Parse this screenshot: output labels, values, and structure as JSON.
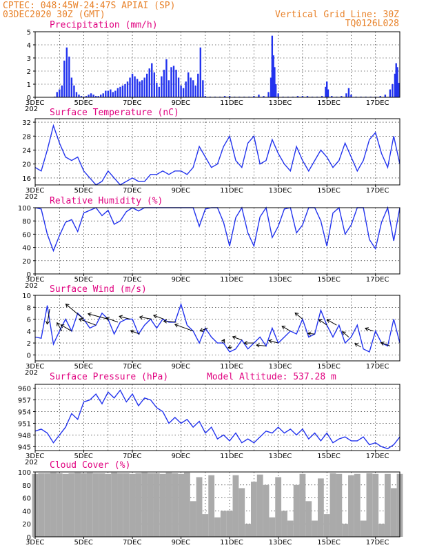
{
  "header": {
    "line1_left": "CPTEC:   048:45W-24:47S  APIAI (SP)",
    "line2_left": "03DEC2020 30Z (GMT)",
    "line1_right": "Vertical Grid Line: 30Z",
    "line2_right": "TQ0126L028",
    "model_altitude": "Model Altitude: 537.28 m"
  },
  "colors": {
    "series": "#2233ee",
    "cloud": "#aaaaaa",
    "header": "#e8822a",
    "title": "#e0007f"
  },
  "x_axis": {
    "labels": [
      "3DEC",
      "5DEC",
      "7DEC",
      "9DEC",
      "11DEC",
      "13DEC",
      "15DEC",
      "17DEC"
    ],
    "stub": "202"
  },
  "chart_data": [
    {
      "type": "bar",
      "title": "Precipitation (mm/h)",
      "ylim": [
        0,
        5
      ],
      "yticks": [
        0,
        1,
        2,
        3,
        4,
        5
      ],
      "x_unit": "day",
      "x": [
        3.8,
        3.9,
        4.0,
        4.1,
        4.2,
        4.3,
        4.4,
        4.5,
        4.6,
        4.7,
        4.8,
        4.9,
        5.0,
        5.1,
        5.2,
        5.3,
        5.4,
        5.5,
        5.6,
        5.7,
        5.8,
        5.9,
        6.0,
        6.1,
        6.2,
        6.3,
        6.4,
        6.5,
        6.6,
        6.7,
        6.8,
        6.9,
        7.0,
        7.1,
        7.2,
        7.3,
        7.4,
        7.5,
        7.6,
        7.7,
        7.8,
        7.9,
        8.0,
        8.1,
        8.2,
        8.3,
        8.4,
        8.5,
        8.6,
        8.7,
        8.8,
        8.9,
        9.0,
        9.1,
        9.2,
        9.3,
        9.4,
        9.5,
        9.6,
        9.7,
        9.8,
        9.9,
        10.0,
        10.2,
        10.4,
        10.6,
        10.8,
        11.0,
        11.2,
        11.4,
        11.6,
        11.8,
        12.0,
        12.2,
        12.4,
        12.6,
        12.7,
        12.75,
        12.8,
        12.85,
        12.9,
        13.0,
        13.2,
        13.4,
        13.6,
        13.8,
        14.0,
        14.2,
        14.4,
        14.6,
        14.8,
        14.95,
        15.0,
        15.05,
        15.2,
        15.4,
        15.6,
        15.8,
        15.9,
        16.0,
        16.2,
        16.4,
        16.6,
        16.8,
        17.0,
        17.2,
        17.4,
        17.6,
        17.7,
        17.8,
        17.85,
        17.9,
        17.95
      ],
      "values": [
        0.05,
        0.4,
        0.6,
        0.9,
        2.8,
        3.8,
        3.1,
        1.5,
        0.9,
        0.4,
        0.2,
        0.1,
        0.05,
        0.1,
        0.2,
        0.3,
        0.2,
        0.1,
        0.1,
        0.2,
        0.3,
        0.5,
        0.5,
        0.6,
        0.4,
        0.5,
        0.7,
        0.8,
        0.9,
        1.0,
        1.2,
        1.5,
        1.8,
        1.6,
        1.4,
        1.2,
        1.3,
        1.5,
        1.8,
        2.2,
        2.6,
        1.9,
        1.1,
        0.8,
        1.6,
        2.1,
        2.9,
        1.3,
        2.3,
        2.4,
        2.1,
        1.5,
        0.9,
        0.7,
        1.2,
        1.9,
        1.5,
        1.3,
        0.9,
        1.8,
        3.8,
        1.3,
        0.1,
        0.05,
        0.05,
        0.05,
        0.1,
        0.1,
        0.05,
        0.05,
        0.05,
        0.05,
        0.1,
        0.2,
        0.1,
        0.4,
        1.5,
        4.7,
        3.2,
        2.3,
        1.0,
        0.3,
        0.05,
        0.05,
        0.05,
        0.1,
        0.1,
        0.1,
        0.05,
        0.05,
        0.1,
        0.8,
        1.2,
        0.6,
        0.1,
        0.05,
        0.1,
        0.3,
        0.7,
        0.2,
        0.05,
        0.05,
        0.05,
        0.05,
        0.05,
        0.1,
        0.2,
        0.6,
        1.0,
        1.8,
        2.6,
        2.3,
        1.1
      ]
    },
    {
      "type": "line",
      "title": "Surface Temperature (nC)",
      "ylim": [
        14,
        33
      ],
      "yticks": [
        16,
        20,
        24,
        28,
        32
      ],
      "x_unit": "day",
      "x": [
        3.0,
        3.25,
        3.5,
        3.75,
        4.0,
        4.25,
        4.5,
        4.75,
        5.0,
        5.25,
        5.5,
        5.75,
        6.0,
        6.25,
        6.5,
        6.75,
        7.0,
        7.25,
        7.5,
        7.75,
        8.0,
        8.25,
        8.5,
        8.75,
        9.0,
        9.25,
        9.5,
        9.75,
        10.0,
        10.25,
        10.5,
        10.75,
        11.0,
        11.25,
        11.5,
        11.75,
        12.0,
        12.25,
        12.5,
        12.75,
        13.0,
        13.25,
        13.5,
        13.75,
        14.0,
        14.25,
        14.5,
        14.75,
        15.0,
        15.25,
        15.5,
        15.75,
        16.0,
        16.25,
        16.5,
        16.75,
        17.0,
        17.25,
        17.5,
        17.75,
        18.0
      ],
      "values": [
        19,
        18,
        24,
        31,
        26,
        22,
        21,
        22,
        18,
        16,
        14,
        15,
        18,
        16,
        14,
        15,
        16,
        15,
        15,
        17,
        17,
        18,
        17,
        18,
        18,
        17,
        19,
        25,
        22,
        19,
        20,
        25,
        28,
        21,
        19,
        26,
        28,
        20,
        21,
        27,
        23,
        20,
        18,
        25,
        21,
        18,
        21,
        24,
        22,
        19,
        21,
        26,
        22,
        18,
        21,
        27,
        29,
        23,
        19,
        28,
        20
      ]
    },
    {
      "type": "line",
      "title": "Relative Humidity (%)",
      "ylim": [
        0,
        100
      ],
      "yticks": [
        0,
        20,
        40,
        60,
        80,
        100
      ],
      "x_unit": "day",
      "x": [
        3.0,
        3.25,
        3.5,
        3.75,
        4.0,
        4.25,
        4.5,
        4.75,
        5.0,
        5.25,
        5.5,
        5.75,
        6.0,
        6.25,
        6.5,
        6.75,
        7.0,
        7.25,
        7.5,
        7.75,
        8.0,
        8.25,
        8.5,
        8.75,
        9.0,
        9.25,
        9.5,
        9.75,
        10.0,
        10.25,
        10.5,
        10.75,
        11.0,
        11.25,
        11.5,
        11.75,
        12.0,
        12.25,
        12.5,
        12.75,
        13.0,
        13.25,
        13.5,
        13.75,
        14.0,
        14.25,
        14.5,
        14.75,
        15.0,
        15.25,
        15.5,
        15.75,
        16.0,
        16.25,
        16.5,
        16.75,
        17.0,
        17.25,
        17.5,
        17.75,
        18.0
      ],
      "values": [
        100,
        98,
        60,
        35,
        58,
        78,
        82,
        64,
        92,
        96,
        100,
        88,
        96,
        75,
        80,
        94,
        100,
        95,
        100,
        100,
        100,
        100,
        100,
        100,
        100,
        100,
        100,
        72,
        98,
        100,
        100,
        78,
        42,
        85,
        100,
        62,
        42,
        86,
        100,
        55,
        72,
        98,
        100,
        62,
        74,
        100,
        100,
        80,
        42,
        92,
        100,
        60,
        74,
        100,
        100,
        52,
        38,
        78,
        100,
        50,
        100
      ]
    },
    {
      "type": "line",
      "title": "Surface Wind (m/s)",
      "ylim": [
        -1,
        10
      ],
      "yticks": [
        0,
        2,
        4,
        6,
        8,
        10
      ],
      "x_unit": "day",
      "x": [
        3.0,
        3.25,
        3.5,
        3.75,
        4.0,
        4.25,
        4.5,
        4.75,
        5.0,
        5.25,
        5.5,
        5.75,
        6.0,
        6.25,
        6.5,
        6.75,
        7.0,
        7.25,
        7.5,
        7.75,
        8.0,
        8.25,
        8.5,
        8.75,
        9.0,
        9.25,
        9.5,
        9.75,
        10.0,
        10.25,
        10.5,
        10.75,
        11.0,
        11.25,
        11.5,
        11.75,
        12.0,
        12.25,
        12.5,
        12.75,
        13.0,
        13.25,
        13.5,
        13.75,
        14.0,
        14.25,
        14.5,
        14.75,
        15.0,
        15.25,
        15.5,
        15.75,
        16.0,
        16.25,
        16.5,
        16.75,
        17.0,
        17.25,
        17.5,
        17.75,
        18.0
      ],
      "values": [
        3,
        2.8,
        8.3,
        1.8,
        4,
        6,
        4,
        7,
        6,
        4.5,
        5,
        7,
        6,
        3.5,
        5.5,
        6,
        6,
        3.5,
        5,
        6,
        4.5,
        6,
        5.5,
        5.5,
        8.5,
        5,
        4,
        2,
        4.5,
        3,
        2,
        2,
        0.5,
        1,
        2.5,
        1,
        2,
        3,
        1.5,
        4.5,
        2,
        3,
        4,
        3.5,
        6,
        3,
        3.5,
        7.5,
        5,
        3,
        5,
        2,
        3,
        5,
        1,
        0.5,
        4,
        2,
        1.5,
        6,
        2
      ],
      "arrows_x": [
        3.6,
        4.1,
        4.5,
        5.0,
        5.5,
        6.0,
        6.4,
        6.9,
        7.3,
        7.8,
        8.3,
        8.8,
        9.5,
        10.1,
        10.7,
        11.1,
        11.5,
        12.0,
        12.5,
        13.0,
        13.5,
        14.0,
        14.5,
        15.0,
        15.4,
        15.9,
        16.4,
        16.9,
        17.6
      ],
      "arrows_dir_deg": [
        260,
        120,
        150,
        140,
        160,
        165,
        160,
        165,
        160,
        170,
        160,
        175,
        160,
        200,
        60,
        190,
        160,
        180,
        175,
        165,
        150,
        140,
        175,
        145,
        150,
        140,
        150,
        160,
        160
      ],
      "arrows_len": [
        22,
        14,
        18,
        34,
        26,
        30,
        18,
        16,
        14,
        18,
        16,
        18,
        28,
        12,
        6,
        6,
        14,
        14,
        14,
        14,
        14,
        14,
        10,
        14,
        16,
        12,
        10,
        12,
        14
      ]
    },
    {
      "type": "line",
      "title": "Surface Pressure (hPa)",
      "ylim": [
        944,
        961
      ],
      "yticks": [
        945,
        948,
        951,
        954,
        957,
        960
      ],
      "x_unit": "day",
      "x": [
        3.0,
        3.25,
        3.5,
        3.75,
        4.0,
        4.25,
        4.5,
        4.75,
        5.0,
        5.25,
        5.5,
        5.75,
        6.0,
        6.25,
        6.5,
        6.75,
        7.0,
        7.25,
        7.5,
        7.75,
        8.0,
        8.25,
        8.5,
        8.75,
        9.0,
        9.25,
        9.5,
        9.75,
        10.0,
        10.25,
        10.5,
        10.75,
        11.0,
        11.25,
        11.5,
        11.75,
        12.0,
        12.25,
        12.5,
        12.75,
        13.0,
        13.25,
        13.5,
        13.75,
        14.0,
        14.25,
        14.5,
        14.75,
        15.0,
        15.25,
        15.5,
        15.75,
        16.0,
        16.25,
        16.5,
        16.75,
        17.0,
        17.25,
        17.5,
        17.75,
        18.0
      ],
      "values": [
        949,
        949.5,
        948.5,
        946,
        948,
        950,
        953.5,
        952,
        956.5,
        957,
        958.5,
        956,
        959,
        957.5,
        959.5,
        956.5,
        958.5,
        955.5,
        957.5,
        957,
        955,
        954,
        951,
        952.5,
        951,
        952,
        950,
        951.5,
        948.5,
        950,
        947,
        948,
        946.5,
        948.5,
        946,
        947,
        946,
        947.5,
        949,
        948.5,
        950,
        948.5,
        949.5,
        948,
        949.5,
        947,
        948.5,
        946.5,
        948.5,
        946,
        947,
        947.5,
        946.5,
        946.5,
        947.5,
        945.5,
        946,
        945,
        944.5,
        945.5,
        947.5
      ]
    },
    {
      "type": "bar",
      "title": "Cloud Cover (%)",
      "ylim": [
        0,
        100
      ],
      "yticks": [
        0,
        20,
        40,
        60,
        80,
        100
      ],
      "x_unit": "day",
      "x": [
        3.0,
        3.25,
        3.5,
        3.75,
        4.0,
        4.25,
        4.5,
        4.75,
        5.0,
        5.25,
        5.5,
        5.75,
        6.0,
        6.25,
        6.5,
        6.75,
        7.0,
        7.25,
        7.5,
        7.75,
        8.0,
        8.25,
        8.5,
        8.75,
        9.0,
        9.25,
        9.5,
        9.75,
        10.0,
        10.25,
        10.5,
        10.75,
        11.0,
        11.25,
        11.5,
        11.75,
        12.0,
        12.25,
        12.5,
        12.75,
        13.0,
        13.25,
        13.5,
        13.75,
        14.0,
        14.25,
        14.5,
        14.75,
        15.0,
        15.25,
        15.5,
        15.75,
        16.0,
        16.25,
        16.5,
        16.75,
        17.0,
        17.25,
        17.5,
        17.75,
        18.0
      ],
      "values": [
        97,
        98,
        98,
        99,
        98,
        97,
        98,
        99,
        98,
        99,
        98,
        98,
        97,
        99,
        98,
        98,
        97,
        98,
        99,
        98,
        98,
        97,
        99,
        98,
        97,
        99,
        55,
        92,
        35,
        95,
        30,
        40,
        40,
        95,
        75,
        20,
        85,
        96,
        80,
        30,
        92,
        40,
        25,
        80,
        97,
        55,
        25,
        90,
        35,
        98,
        97,
        20,
        95,
        97,
        25,
        98,
        97,
        20,
        97,
        75,
        97
      ]
    }
  ],
  "panel_titles": {
    "p0": "Precipitation (mm/h)",
    "p1": "Surface Temperature (nC)",
    "p2": "Relative Humidity (%)",
    "p3": "Surface Wind (m/s)",
    "p4": "Surface Pressure (hPa)",
    "p5": "Cloud Cover (%)"
  }
}
